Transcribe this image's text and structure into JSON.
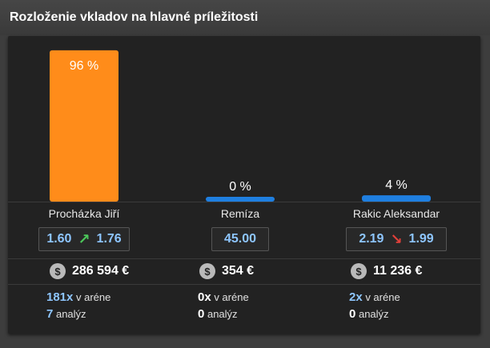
{
  "title": "Rozloženie vkladov na hlavné príležitosti",
  "colors": {
    "favorite": "#ff8c1a",
    "other": "#1f7fe0",
    "odd_text": "#8ec6ff"
  },
  "chart_data": {
    "type": "bar",
    "categories": [
      "Procházka Jiří",
      "Remíza",
      "Rakic Aleksandar"
    ],
    "values": [
      96,
      0,
      4
    ],
    "unit": "%",
    "labels": [
      "96 %",
      "0 %",
      "4 %"
    ],
    "ylim": [
      0,
      100
    ]
  },
  "outcomes": [
    {
      "name": "Procházka Jiří",
      "odd_open": "1.60",
      "trend": "up",
      "trend_icon": "arrow-up-right-icon",
      "odd_now": "1.76",
      "stake": "286 594 €",
      "bets_count": "181x",
      "bets_label": "v aréne",
      "analyses_count": "7",
      "analyses_label": "analýz"
    },
    {
      "name": "Remíza",
      "odd_open": "",
      "trend": "none",
      "trend_icon": "",
      "odd_now": "45.00",
      "stake": "354 €",
      "bets_count": "0x",
      "bets_label": "v aréne",
      "analyses_count": "0",
      "analyses_label": "analýz"
    },
    {
      "name": "Rakic Aleksandar",
      "odd_open": "2.19",
      "trend": "down",
      "trend_icon": "arrow-down-right-icon",
      "odd_now": "1.99",
      "stake": "11 236 €",
      "bets_count": "2x",
      "bets_label": "v aréne",
      "analyses_count": "0",
      "analyses_label": "analýz"
    }
  ],
  "coin_glyph": "$"
}
